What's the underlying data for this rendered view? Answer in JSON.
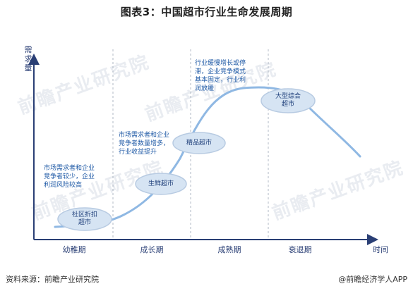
{
  "title": "图表3：中国超市行业生命发展周期",
  "y_axis_label": "需求量",
  "x_axis_label": "时间",
  "stages": [
    {
      "label": "幼稚期"
    },
    {
      "label": "成长期"
    },
    {
      "label": "成熟期"
    },
    {
      "label": "衰退期"
    }
  ],
  "notes": [
    {
      "lines": [
        "市场需求者和企业",
        "竞争者较少，企业",
        "利润风险较高"
      ]
    },
    {
      "lines": [
        "市场需求者和企业",
        "竞争者数量增多，",
        "行业收益提升"
      ]
    },
    {
      "lines": [
        "行业缓慢增长或停",
        "滞，企业竞争模式",
        "基本固定，行业利",
        "润放缓"
      ]
    }
  ],
  "bubbles": [
    {
      "lines": [
        "社区折扣",
        "超市"
      ]
    },
    {
      "lines": [
        "生鲜超市"
      ]
    },
    {
      "lines": [
        "精品超市"
      ]
    },
    {
      "lines": [
        "大型综合",
        "超市"
      ]
    }
  ],
  "watermark": "前瞻产业研究院",
  "footer": {
    "source": "资料来源：前瞻产业研究院",
    "credit": "@前瞻经济学人APP"
  },
  "colors": {
    "curve": "#8fb8e3",
    "axis": "#2a3f75",
    "divider": "#b0b8c4",
    "bubble_fill": "#d6e4f3",
    "bubble_stroke": "#b8cbe2",
    "note_text": "#1f5aa6"
  }
}
